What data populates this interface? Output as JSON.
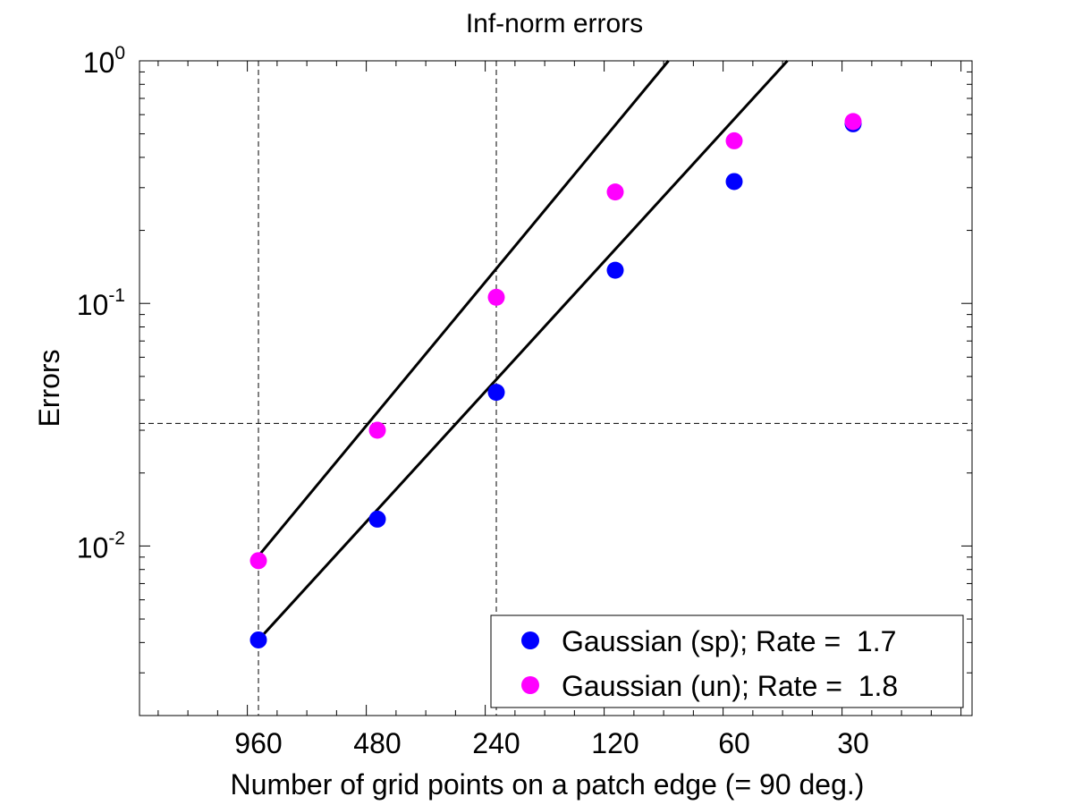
{
  "colors": {
    "background": "#ffffff",
    "axes": "#000000",
    "fit_line": "#000000",
    "series_sp": "#0000ff",
    "series_un": "#ff00ff"
  },
  "chart_data": {
    "type": "scatter",
    "title": "Inf-norm errors",
    "xlabel": "Number of grid points on a patch edge (= 90 deg.)",
    "ylabel": "Errors",
    "x_scale": "log2-reversed",
    "xlim": [
      1920,
      15
    ],
    "ylim": [
      0.002,
      1
    ],
    "y_scale": "log",
    "grid": false,
    "x_ticks": [
      960,
      480,
      240,
      120,
      60,
      30
    ],
    "x_tick_labels": [
      "960",
      "480",
      "240",
      "120",
      "60",
      "30"
    ],
    "y_ticks": [
      {
        "value": 1,
        "base": "10",
        "exp": "0"
      },
      {
        "value": 0.1,
        "base": "10",
        "exp": "-1"
      },
      {
        "value": 0.01,
        "base": "10",
        "exp": "-2"
      }
    ],
    "reference_lines": {
      "vertical_x": [
        960,
        240
      ],
      "horizontal_y": [
        0.032
      ]
    },
    "series": [
      {
        "name": "Gaussian (sp); Rate =  1.7",
        "color": "#0000ff",
        "x": [
          960,
          480,
          240,
          120,
          60,
          30
        ],
        "y": [
          0.0041,
          0.0129,
          0.043,
          0.137,
          0.318,
          0.55
        ],
        "fit": {
          "rate": 1.7,
          "x": [
            960,
            44
          ],
          "y": [
            0.0041,
            1.0
          ]
        }
      },
      {
        "name": "Gaussian (un); Rate =  1.8",
        "color": "#ff00ff",
        "x": [
          960,
          480,
          240,
          120,
          60,
          30
        ],
        "y": [
          0.0087,
          0.03,
          0.106,
          0.288,
          0.468,
          0.562
        ],
        "fit": {
          "rate": 1.8,
          "x": [
            960,
            88
          ],
          "y": [
            0.0091,
            1.0
          ]
        }
      }
    ],
    "legend": {
      "placement": "bottom-right"
    }
  }
}
